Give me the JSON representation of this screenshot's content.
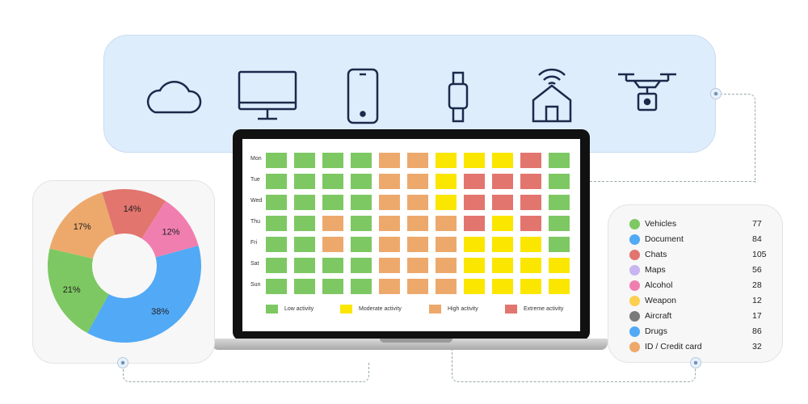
{
  "devices": [
    "cloud-icon",
    "monitor-icon",
    "smartphone-icon",
    "smartwatch-icon",
    "smart-home-icon",
    "drone-icon"
  ],
  "heatmap": {
    "days": [
      "Mon",
      "Tue",
      "Wed",
      "Thu",
      "Fri",
      "Sat",
      "Sun"
    ],
    "colors": {
      "L": "#7dc862",
      "M": "#fbe600",
      "H": "#eda96c",
      "E": "#e2756e"
    },
    "grid": [
      [
        "L",
        "L",
        "L",
        "L",
        "H",
        "H",
        "M",
        "M",
        "M",
        "E",
        "L"
      ],
      [
        "L",
        "L",
        "L",
        "L",
        "H",
        "H",
        "M",
        "E",
        "E",
        "E",
        "L"
      ],
      [
        "L",
        "L",
        "L",
        "L",
        "H",
        "H",
        "M",
        "E",
        "E",
        "E",
        "L"
      ],
      [
        "L",
        "L",
        "H",
        "L",
        "H",
        "H",
        "H",
        "E",
        "M",
        "E",
        "L"
      ],
      [
        "L",
        "L",
        "H",
        "L",
        "H",
        "H",
        "H",
        "M",
        "M",
        "M",
        "L"
      ],
      [
        "L",
        "L",
        "L",
        "L",
        "H",
        "H",
        "H",
        "M",
        "M",
        "M",
        "M"
      ],
      [
        "L",
        "L",
        "L",
        "L",
        "H",
        "H",
        "H",
        "M",
        "M",
        "M",
        "M"
      ]
    ],
    "legend": [
      {
        "key": "L",
        "label": "Low activity"
      },
      {
        "key": "M",
        "label": "Moderate activity"
      },
      {
        "key": "H",
        "label": "High activity"
      },
      {
        "key": "E",
        "label": "Extreme activity"
      }
    ]
  },
  "chart_data": {
    "type": "pie",
    "donut": true,
    "slices": [
      {
        "label": "14%",
        "value": 14,
        "color": "#e2756e"
      },
      {
        "label": "12%",
        "value": 12,
        "color": "#f07fb0"
      },
      {
        "label": "38%",
        "value": 38,
        "color": "#52a9f5"
      },
      {
        "label": "21%",
        "value": 21,
        "color": "#7dc862"
      },
      {
        "label": "17%",
        "value": 17,
        "color": "#eda96c"
      }
    ]
  },
  "legend": [
    {
      "label": "Vehicles",
      "value": "77",
      "color": "#7dc862"
    },
    {
      "label": "Document",
      "value": "84",
      "color": "#52a9f5"
    },
    {
      "label": "Chats",
      "value": "105",
      "color": "#e2756e"
    },
    {
      "label": "Maps",
      "value": "56",
      "color": "#c7b4f0"
    },
    {
      "label": "Alcohol",
      "value": "28",
      "color": "#f07fb0"
    },
    {
      "label": "Weapon",
      "value": "12",
      "color": "#fdcf4f"
    },
    {
      "label": "Aircraft",
      "value": "17",
      "color": "#7a7a7a"
    },
    {
      "label": "Drugs",
      "value": "86",
      "color": "#52a9f5"
    },
    {
      "label": "ID / Credit card",
      "value": "32",
      "color": "#eda96c"
    }
  ]
}
